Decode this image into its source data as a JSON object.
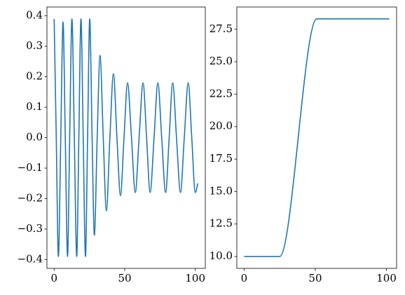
{
  "chart_data": [
    {
      "type": "line",
      "x": [
        0,
        1.5,
        3,
        4.7,
        6.3,
        7.9,
        9.5,
        11,
        12.6,
        14.3,
        16,
        17.5,
        19,
        20.6,
        22.2,
        23.7,
        25.2,
        26.9,
        28.5,
        30.5,
        32.5,
        34.8,
        37,
        39.5,
        42,
        44.5,
        47,
        49.5,
        52,
        54.8,
        57.5,
        60.2,
        63,
        65.5,
        68,
        70.8,
        73.5,
        76.2,
        79,
        81.5,
        84,
        86.7,
        89.5,
        92.2,
        95,
        97.5,
        100,
        101.8
      ],
      "series": [
        {
          "color": "#1f77b4",
          "values": [
            0.39,
            0,
            -0.39,
            0,
            0.38,
            0,
            -0.39,
            0,
            0.39,
            0,
            -0.39,
            0,
            0.39,
            0,
            -0.39,
            0,
            0.39,
            0,
            -0.32,
            0,
            0.27,
            0,
            -0.24,
            0,
            0.21,
            0,
            -0.19,
            0,
            0.18,
            0,
            -0.18,
            0,
            0.18,
            0,
            -0.18,
            0,
            0.18,
            0,
            -0.18,
            0,
            0.18,
            0,
            -0.18,
            0,
            0.18,
            0,
            -0.18,
            -0.15
          ]
        }
      ],
      "xlim": [
        -5.1,
        107.1
      ],
      "xticks": [
        0,
        50,
        100
      ],
      "ylim": [
        -0.429,
        0.429
      ],
      "yticks": [
        {
          "value": -0.4,
          "label": "−0.4"
        },
        {
          "value": -0.3,
          "label": "−0.3"
        },
        {
          "value": -0.2,
          "label": "−0.2"
        },
        {
          "value": -0.1,
          "label": "−0.1"
        },
        {
          "value": 0,
          "label": "0.0"
        },
        0.1,
        0.2,
        0.3,
        0.4
      ]
    },
    {
      "type": "line",
      "x": [
        0,
        25,
        51,
        102
      ],
      "series": [
        {
          "color": "#1f77b4",
          "values": [
            10,
            10,
            28.3,
            28.3
          ]
        }
      ],
      "xlim": [
        -5.1,
        107.1
      ],
      "xticks": [
        0,
        50,
        100
      ],
      "ylim": [
        9.085,
        29.215
      ],
      "yticks": [
        {
          "value": 10,
          "label": "10.0"
        },
        12.5,
        {
          "value": 15,
          "label": "15.0"
        },
        17.5,
        {
          "value": 20,
          "label": "20.0"
        },
        22.5,
        {
          "value": 25,
          "label": "25.0"
        },
        27.5
      ]
    }
  ]
}
